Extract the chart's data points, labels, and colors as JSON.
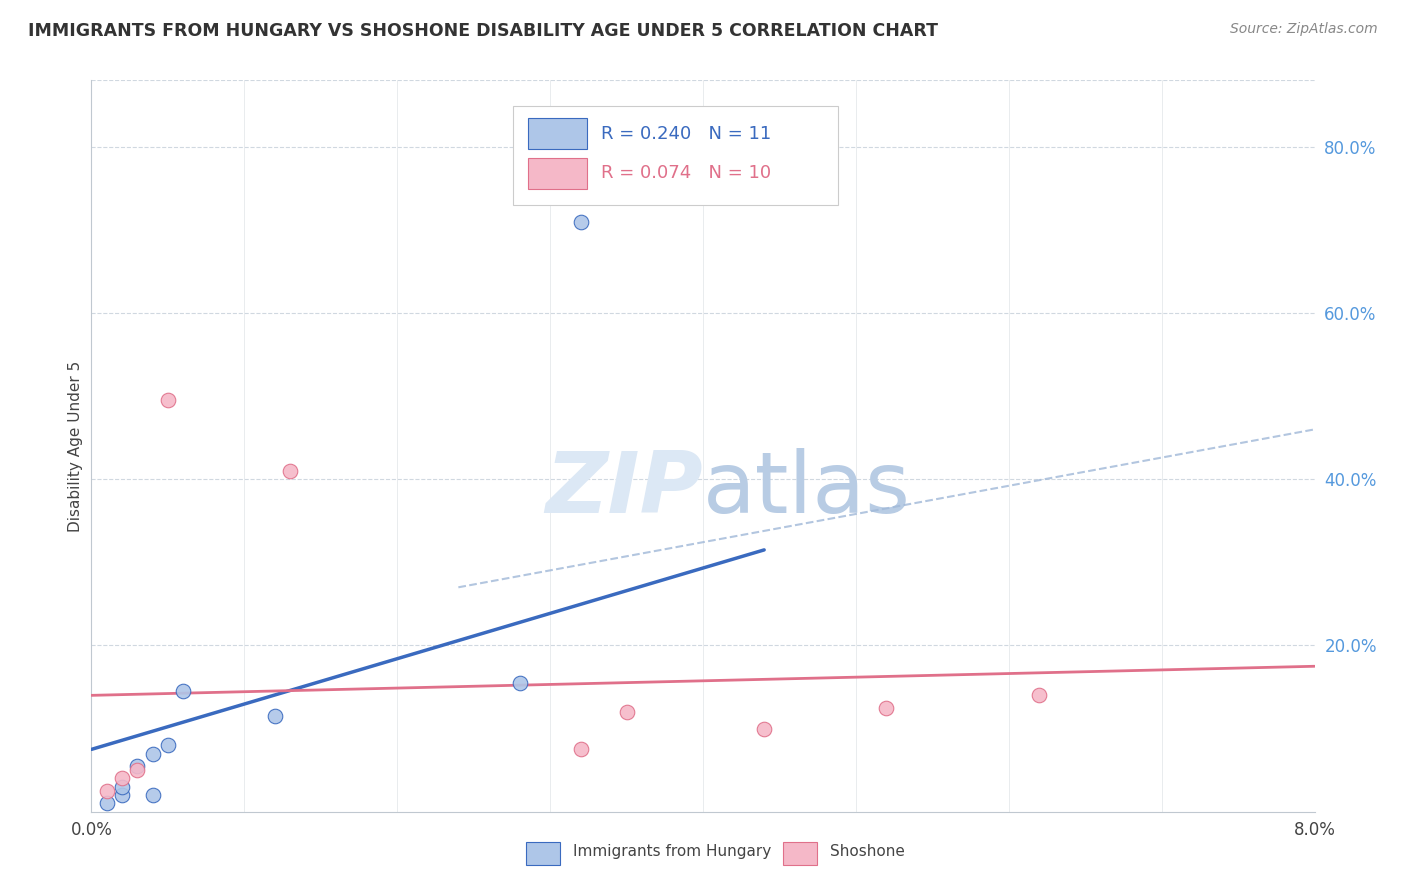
{
  "title": "IMMIGRANTS FROM HUNGARY VS SHOSHONE DISABILITY AGE UNDER 5 CORRELATION CHART",
  "source": "Source: ZipAtlas.com",
  "ylabel": "Disability Age Under 5",
  "right_yticks": [
    "80.0%",
    "60.0%",
    "40.0%",
    "20.0%"
  ],
  "right_ytick_vals": [
    0.8,
    0.6,
    0.4,
    0.2
  ],
  "xmin": 0.0,
  "xmax": 0.08,
  "ymin": 0.0,
  "ymax": 0.88,
  "legend1_R": "0.240",
  "legend1_N": "11",
  "legend2_R": "0.074",
  "legend2_N": "10",
  "blue_color": "#aec6e8",
  "blue_line_color": "#3a6abf",
  "pink_color": "#f5b8c8",
  "pink_line_color": "#e0708a",
  "dashed_color": "#a0b8d8",
  "watermark_color": "#dce8f5",
  "blue_points_x": [
    0.001,
    0.002,
    0.002,
    0.003,
    0.004,
    0.004,
    0.005,
    0.006,
    0.012,
    0.028,
    0.032
  ],
  "blue_points_y": [
    0.01,
    0.02,
    0.03,
    0.055,
    0.02,
    0.07,
    0.08,
    0.145,
    0.115,
    0.155,
    0.71
  ],
  "pink_points_x": [
    0.001,
    0.002,
    0.003,
    0.005,
    0.013,
    0.032,
    0.035,
    0.044,
    0.052,
    0.062
  ],
  "pink_points_y": [
    0.025,
    0.04,
    0.05,
    0.495,
    0.41,
    0.075,
    0.12,
    0.1,
    0.125,
    0.14
  ],
  "blue_trendline_x": [
    0.0,
    0.044
  ],
  "blue_trendline_y": [
    0.075,
    0.315
  ],
  "pink_trendline_x": [
    0.0,
    0.08
  ],
  "pink_trendline_y": [
    0.14,
    0.175
  ],
  "dashed_line_x": [
    0.024,
    0.08
  ],
  "dashed_line_y": [
    0.27,
    0.46
  ],
  "xtick_positions": [
    0.0,
    0.01,
    0.02,
    0.03,
    0.04,
    0.05,
    0.06,
    0.07,
    0.08
  ],
  "grid_xtick_positions": [
    0.01,
    0.02,
    0.03,
    0.04,
    0.05,
    0.06,
    0.07
  ]
}
